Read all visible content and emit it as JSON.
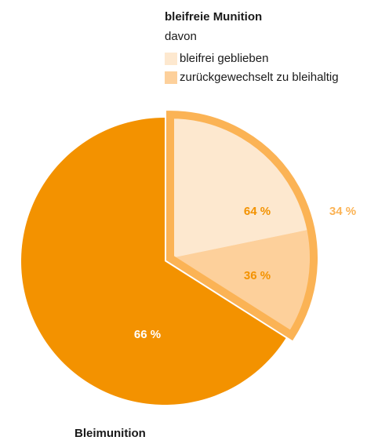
{
  "chart_data": {
    "type": "pie",
    "categories": [
      "Bleimunition",
      "bleifreie Munition"
    ],
    "values": [
      66,
      34
    ],
    "value_labels": [
      "66 %",
      "34 %"
    ],
    "colors": [
      "#f39200",
      "#fbb355"
    ],
    "breakdown": {
      "title": "davon",
      "categories": [
        "bleifrei geblieben",
        "zurückgewechselt zu bleihaltig"
      ],
      "values": [
        64,
        36
      ],
      "value_labels": [
        "64 %",
        "36 %"
      ],
      "colors": [
        "#fde8cf",
        "#fdd09b"
      ]
    }
  }
}
